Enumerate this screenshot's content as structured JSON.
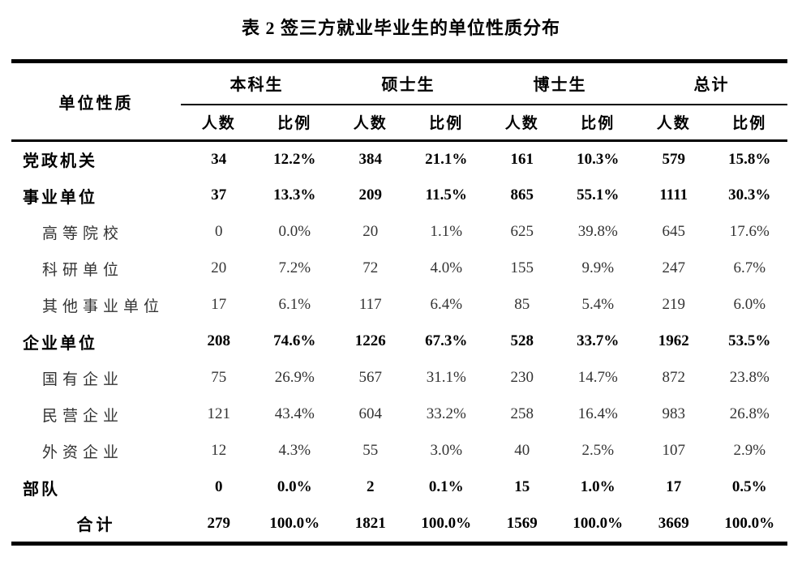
{
  "title": "表 2 签三方就业毕业生的单位性质分布",
  "colors": {
    "text": "#000000",
    "background": "#ffffff",
    "rule": "#000000"
  },
  "table": {
    "row_header": "单位性质",
    "groups": [
      {
        "label": "本科生"
      },
      {
        "label": "硕士生"
      },
      {
        "label": "博士生"
      },
      {
        "label": "总计"
      }
    ],
    "sub_header": {
      "count": "人数",
      "ratio": "比例"
    },
    "rows": [
      {
        "label": "党政机关",
        "level": "category",
        "cells": [
          "34",
          "12.2%",
          "384",
          "21.1%",
          "161",
          "10.3%",
          "579",
          "15.8%"
        ]
      },
      {
        "label": "事业单位",
        "level": "category",
        "cells": [
          "37",
          "13.3%",
          "209",
          "11.5%",
          "865",
          "55.1%",
          "1111",
          "30.3%"
        ]
      },
      {
        "label": "高等院校",
        "level": "sub",
        "cells": [
          "0",
          "0.0%",
          "20",
          "1.1%",
          "625",
          "39.8%",
          "645",
          "17.6%"
        ]
      },
      {
        "label": "科研单位",
        "level": "sub",
        "cells": [
          "20",
          "7.2%",
          "72",
          "4.0%",
          "155",
          "9.9%",
          "247",
          "6.7%"
        ]
      },
      {
        "label": "其他事业单位",
        "level": "sub",
        "cells": [
          "17",
          "6.1%",
          "117",
          "6.4%",
          "85",
          "5.4%",
          "219",
          "6.0%"
        ]
      },
      {
        "label": "企业单位",
        "level": "category",
        "cells": [
          "208",
          "74.6%",
          "1226",
          "67.3%",
          "528",
          "33.7%",
          "1962",
          "53.5%"
        ]
      },
      {
        "label": "国有企业",
        "level": "sub",
        "cells": [
          "75",
          "26.9%",
          "567",
          "31.1%",
          "230",
          "14.7%",
          "872",
          "23.8%"
        ]
      },
      {
        "label": "民营企业",
        "level": "sub",
        "cells": [
          "121",
          "43.4%",
          "604",
          "33.2%",
          "258",
          "16.4%",
          "983",
          "26.8%"
        ]
      },
      {
        "label": "外资企业",
        "level": "sub",
        "cells": [
          "12",
          "4.3%",
          "55",
          "3.0%",
          "40",
          "2.5%",
          "107",
          "2.9%"
        ]
      },
      {
        "label": "部队",
        "level": "category",
        "cells": [
          "0",
          "0.0%",
          "2",
          "0.1%",
          "15",
          "1.0%",
          "17",
          "0.5%"
        ]
      },
      {
        "label": "合计",
        "level": "total",
        "cells": [
          "279",
          "100.0%",
          "1821",
          "100.0%",
          "1569",
          "100.0%",
          "3669",
          "100.0%"
        ]
      }
    ]
  }
}
